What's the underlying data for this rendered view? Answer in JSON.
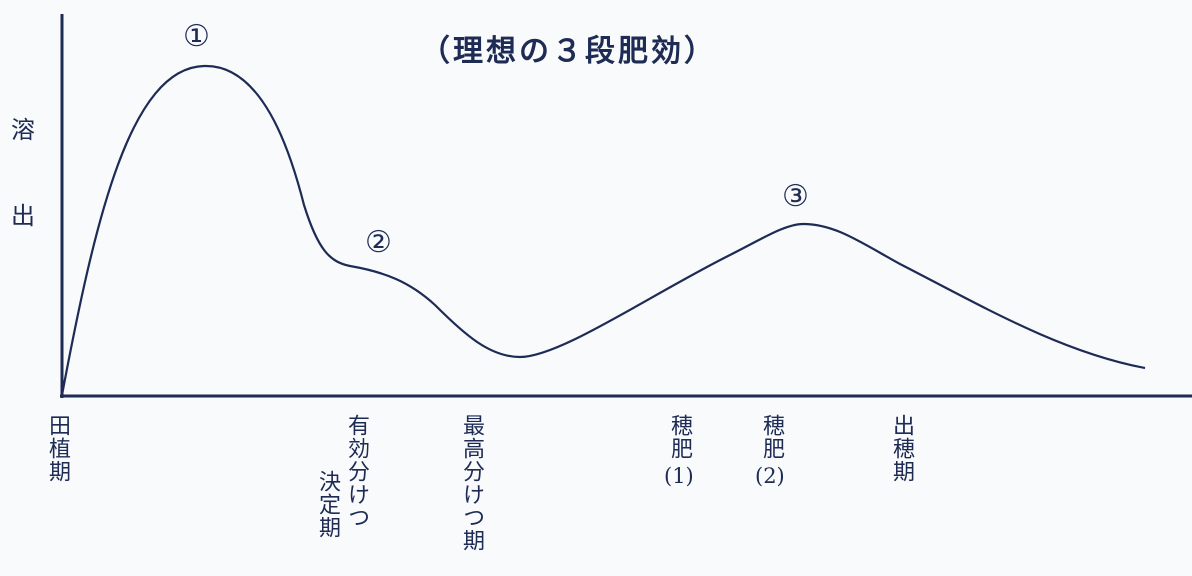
{
  "chart_data": {
    "type": "line",
    "title": "（理想の３段肥効）",
    "ylabel_chars": [
      "溶",
      "出"
    ],
    "peak_markers": [
      "①",
      "②",
      "③"
    ],
    "x_labels": [
      {
        "id": "taue",
        "text": "田植期"
      },
      {
        "id": "yuko",
        "text": "有効分けつ",
        "text2": "決定期"
      },
      {
        "id": "saiko",
        "text": "最高分けつ期"
      },
      {
        "id": "hogoe1",
        "text": "穂肥",
        "num": "(1)"
      },
      {
        "id": "hogoe2",
        "text": "穂肥",
        "num": "(2)"
      },
      {
        "id": "shussui",
        "text": "出穂期"
      }
    ],
    "series": [
      {
        "values_note": "",
        "points": [
          [
            0,
            0
          ],
          [
            10,
            68
          ],
          [
            17,
            94
          ],
          [
            25,
            67
          ],
          [
            30,
            37
          ],
          [
            36,
            32
          ],
          [
            49,
            11
          ],
          [
            70,
            36
          ],
          [
            82,
            53
          ],
          [
            92,
            42
          ],
          [
            120,
            9
          ]
        ]
      }
    ],
    "ylim": [
      0,
      100
    ],
    "xlim": [
      0,
      120
    ],
    "grid": false
  },
  "colors": {
    "line": "#1d2b55",
    "axis": "#1d2b55"
  }
}
